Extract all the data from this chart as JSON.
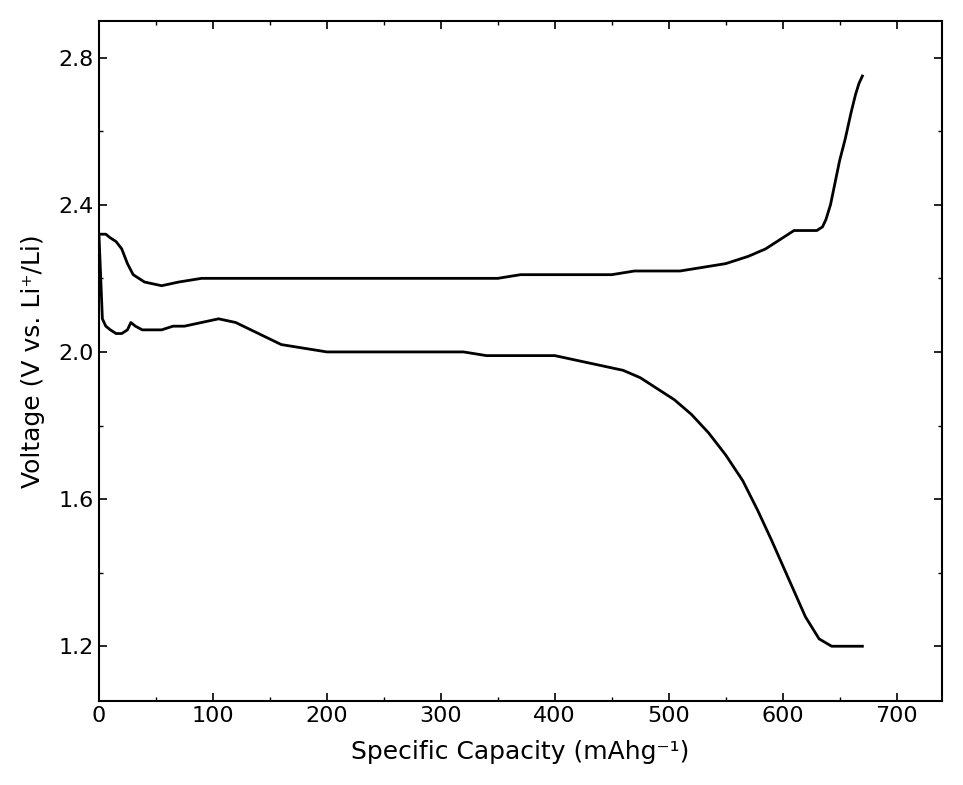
{
  "xlabel": "Specific Capacity (mAhg⁻¹)",
  "ylabel": "Voltage (V vs. Li⁺/Li)",
  "xlim": [
    0,
    740
  ],
  "ylim": [
    1.05,
    2.9
  ],
  "xticks": [
    0,
    100,
    200,
    300,
    400,
    500,
    600,
    700
  ],
  "yticks": [
    1.2,
    1.6,
    2.0,
    2.4,
    2.8
  ],
  "background_color": "#ffffff",
  "line_color": "#000000",
  "line_width": 2.0,
  "xlabel_fontsize": 18,
  "ylabel_fontsize": 18,
  "tick_fontsize": 16,
  "discharge_curve": {
    "x": [
      0,
      3,
      6,
      10,
      15,
      20,
      25,
      28,
      32,
      38,
      45,
      55,
      65,
      75,
      90,
      105,
      120,
      140,
      160,
      180,
      200,
      220,
      240,
      260,
      280,
      300,
      320,
      340,
      360,
      380,
      400,
      415,
      430,
      445,
      460,
      475,
      490,
      505,
      520,
      535,
      550,
      565,
      578,
      590,
      600,
      610,
      620,
      632,
      643,
      652,
      660,
      666,
      670
    ],
    "y": [
      2.32,
      2.09,
      2.07,
      2.06,
      2.05,
      2.05,
      2.06,
      2.08,
      2.07,
      2.06,
      2.06,
      2.06,
      2.07,
      2.07,
      2.08,
      2.09,
      2.08,
      2.05,
      2.02,
      2.01,
      2.0,
      2.0,
      2.0,
      2.0,
      2.0,
      2.0,
      2.0,
      1.99,
      1.99,
      1.99,
      1.99,
      1.98,
      1.97,
      1.96,
      1.95,
      1.93,
      1.9,
      1.87,
      1.83,
      1.78,
      1.72,
      1.65,
      1.57,
      1.49,
      1.42,
      1.35,
      1.28,
      1.22,
      1.2,
      1.2,
      1.2,
      1.2,
      1.2
    ]
  },
  "charge_curve": {
    "x": [
      0,
      3,
      6,
      10,
      15,
      20,
      25,
      30,
      40,
      55,
      70,
      90,
      110,
      130,
      150,
      170,
      190,
      210,
      230,
      250,
      270,
      290,
      310,
      330,
      350,
      370,
      390,
      410,
      430,
      450,
      470,
      490,
      510,
      530,
      550,
      570,
      585,
      595,
      600,
      605,
      610,
      615,
      620,
      625,
      630,
      635,
      638,
      642,
      646,
      650,
      655,
      660,
      664,
      667,
      670
    ],
    "y": [
      2.32,
      2.32,
      2.32,
      2.31,
      2.3,
      2.28,
      2.24,
      2.21,
      2.19,
      2.18,
      2.19,
      2.2,
      2.2,
      2.2,
      2.2,
      2.2,
      2.2,
      2.2,
      2.2,
      2.2,
      2.2,
      2.2,
      2.2,
      2.2,
      2.2,
      2.21,
      2.21,
      2.21,
      2.21,
      2.21,
      2.22,
      2.22,
      2.22,
      2.23,
      2.24,
      2.26,
      2.28,
      2.3,
      2.31,
      2.32,
      2.33,
      2.33,
      2.33,
      2.33,
      2.33,
      2.34,
      2.36,
      2.4,
      2.46,
      2.52,
      2.58,
      2.65,
      2.7,
      2.73,
      2.75
    ]
  }
}
